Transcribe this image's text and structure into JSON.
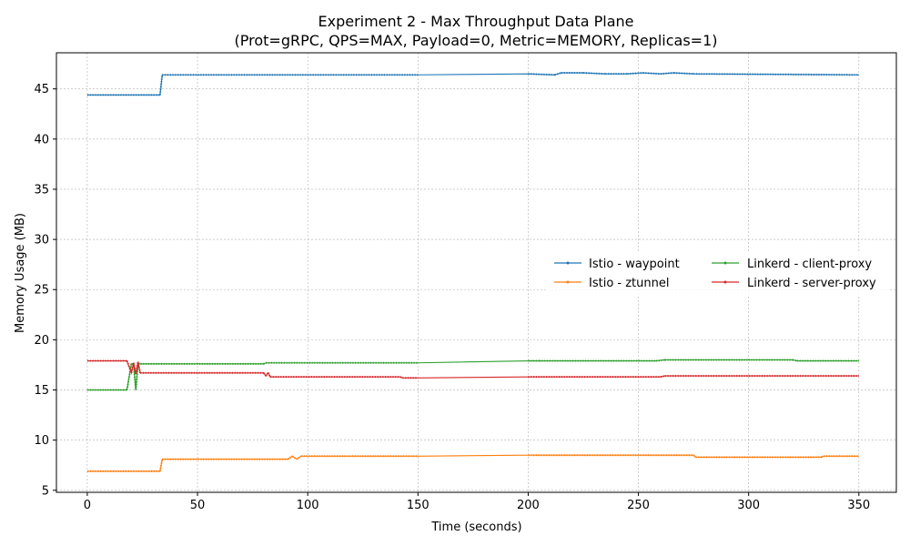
{
  "chart_data": {
    "type": "line",
    "title": "Experiment 2 - Max Throughput Data Plane",
    "subtitle": "(Prot=gRPC, QPS=MAX, Payload=0, Metric=MEMORY, Replicas=1)",
    "xlabel": "Time (seconds)",
    "ylabel": "Memory Usage (MB)",
    "xlim": [
      -14,
      367
    ],
    "ylim": [
      4.8,
      48.6
    ],
    "xticks": [
      0,
      50,
      100,
      150,
      200,
      250,
      300,
      350
    ],
    "yticks": [
      5,
      10,
      15,
      20,
      25,
      30,
      35,
      40,
      45
    ],
    "grid": true,
    "legend_position": "center-right",
    "series": [
      {
        "name": "Istio - waypoint",
        "color": "#1f77b4",
        "points": [
          [
            0,
            44.4
          ],
          [
            33,
            44.4
          ],
          [
            34,
            46.4
          ],
          [
            150,
            46.4
          ],
          [
            200,
            46.5
          ],
          [
            212,
            46.4
          ],
          [
            215,
            46.6
          ],
          [
            225,
            46.6
          ],
          [
            235,
            46.5
          ],
          [
            245,
            46.5
          ],
          [
            252,
            46.6
          ],
          [
            260,
            46.5
          ],
          [
            266,
            46.6
          ],
          [
            275,
            46.5
          ],
          [
            350,
            46.4
          ]
        ]
      },
      {
        "name": "Istio - ztunnel",
        "color": "#ff7f0e",
        "points": [
          [
            0,
            6.9
          ],
          [
            33,
            6.9
          ],
          [
            34,
            8.1
          ],
          [
            91,
            8.1
          ],
          [
            93,
            8.4
          ],
          [
            95,
            8.1
          ],
          [
            97,
            8.4
          ],
          [
            150,
            8.4
          ],
          [
            200,
            8.5
          ],
          [
            275,
            8.5
          ],
          [
            276,
            8.3
          ],
          [
            333,
            8.3
          ],
          [
            334,
            8.4
          ],
          [
            350,
            8.4
          ]
        ]
      },
      {
        "name": "Linkerd - client-proxy",
        "color": "#2ca02c",
        "points": [
          [
            0,
            15.0
          ],
          [
            18,
            15.0
          ],
          [
            20,
            17.6
          ],
          [
            21,
            17.6
          ],
          [
            22,
            15.0
          ],
          [
            23,
            17.6
          ],
          [
            80,
            17.6
          ],
          [
            81,
            17.7
          ],
          [
            150,
            17.7
          ],
          [
            200,
            17.9
          ],
          [
            205,
            17.9
          ],
          [
            258,
            17.9
          ],
          [
            262,
            18.0
          ],
          [
            300,
            18.0
          ],
          [
            320,
            18.0
          ],
          [
            322,
            17.9
          ],
          [
            350,
            17.9
          ]
        ]
      },
      {
        "name": "Linkerd - server-proxy",
        "color": "#d62728",
        "points": [
          [
            0,
            17.9
          ],
          [
            18,
            17.9
          ],
          [
            20,
            16.7
          ],
          [
            21,
            17.7
          ],
          [
            22,
            16.6
          ],
          [
            23,
            17.8
          ],
          [
            24,
            16.7
          ],
          [
            80,
            16.7
          ],
          [
            81,
            16.4
          ],
          [
            82,
            16.7
          ],
          [
            83,
            16.3
          ],
          [
            142,
            16.3
          ],
          [
            143,
            16.2
          ],
          [
            150,
            16.2
          ],
          [
            200,
            16.3
          ],
          [
            260,
            16.3
          ],
          [
            262,
            16.4
          ],
          [
            350,
            16.4
          ]
        ]
      }
    ]
  }
}
